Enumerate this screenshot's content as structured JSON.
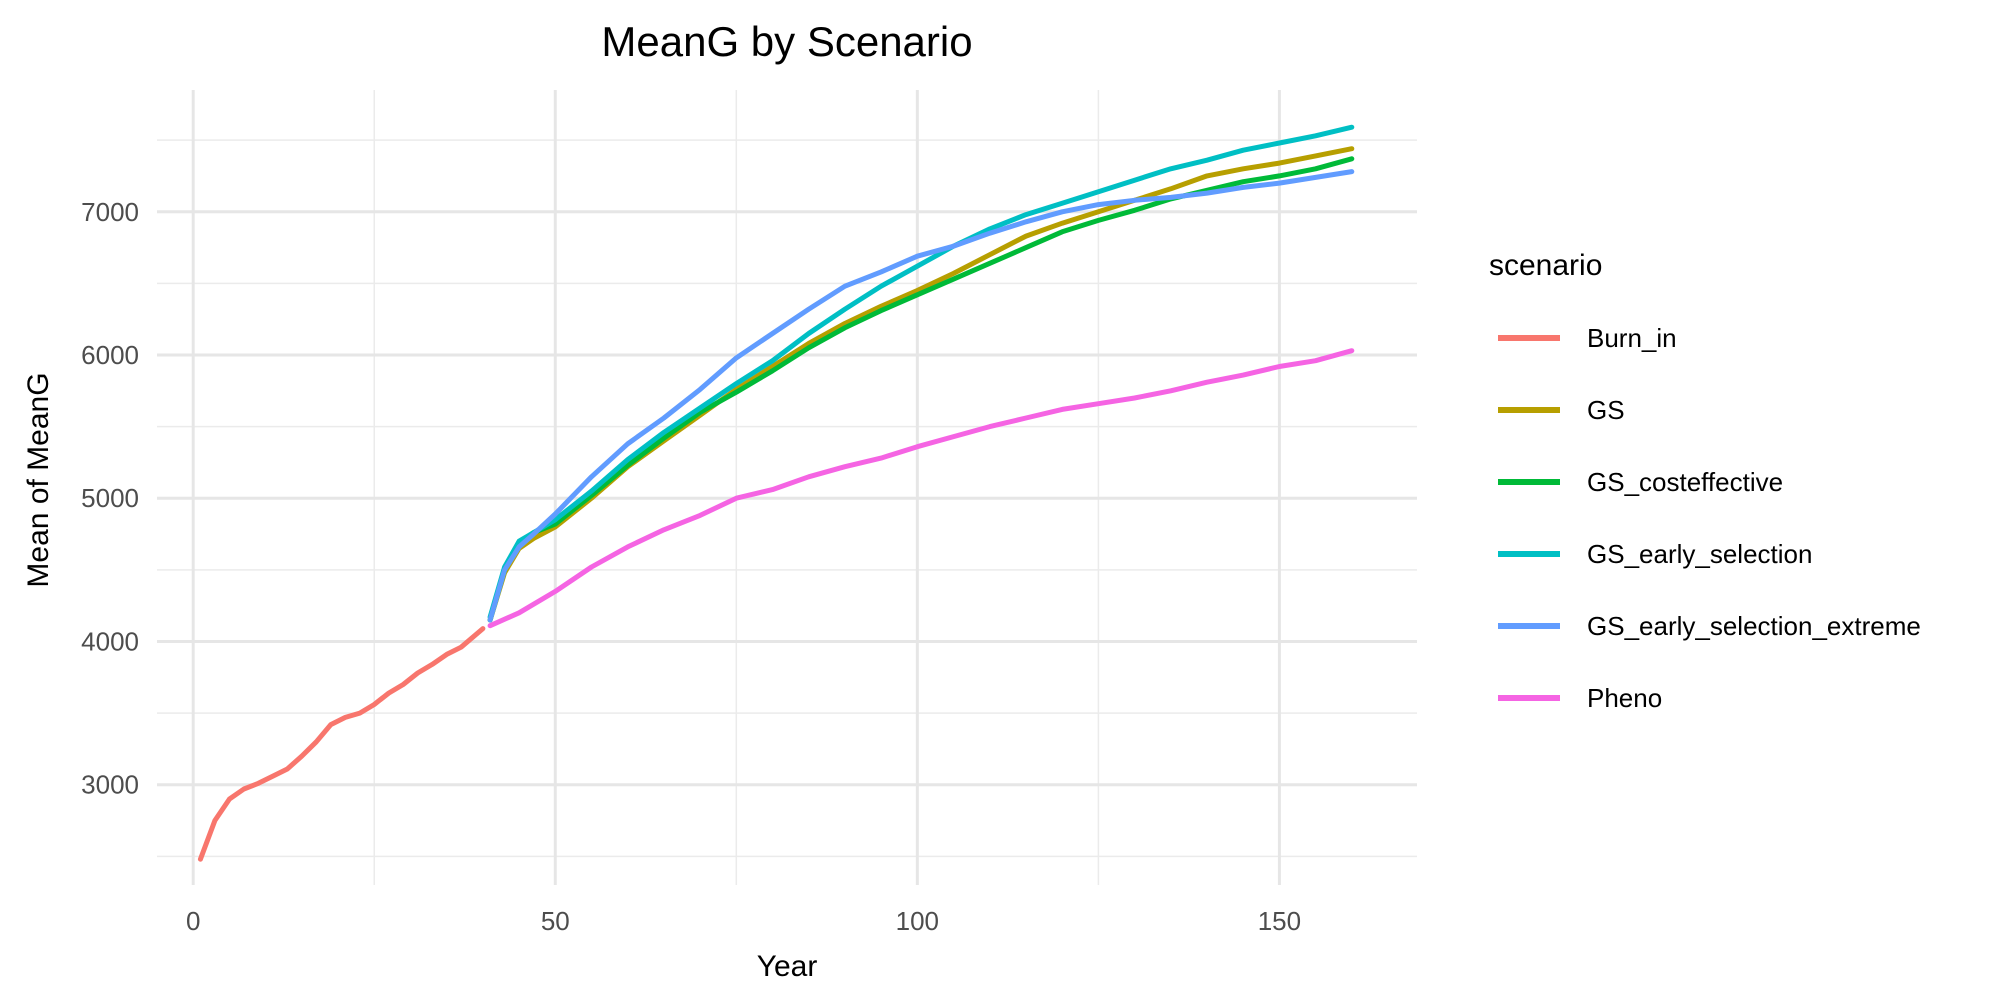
{
  "chart_data": {
    "type": "line",
    "title": "MeanG by Scenario",
    "xlabel": "Year",
    "ylabel": "Mean of MeanG",
    "xlim": [
      -5,
      169
    ],
    "ylim": [
      2300,
      7850
    ],
    "x_ticks": [
      0,
      50,
      100,
      150
    ],
    "x_tick_labels": [
      "0",
      "50",
      "100",
      "150"
    ],
    "y_ticks": [
      3000,
      4000,
      5000,
      6000,
      7000
    ],
    "y_tick_labels": [
      "3000",
      "4000",
      "5000",
      "6000",
      "7000"
    ],
    "grid": true,
    "legend": {
      "title": "scenario",
      "position": "right"
    },
    "series": [
      {
        "name": "Burn_in",
        "color": "#F8766D",
        "x": [
          1,
          3,
          5,
          7,
          9,
          11,
          13,
          15,
          17,
          19,
          21,
          23,
          25,
          27,
          29,
          31,
          33,
          35,
          37,
          40
        ],
        "y": [
          2480,
          2750,
          2900,
          2970,
          3010,
          3060,
          3110,
          3200,
          3300,
          3420,
          3470,
          3500,
          3560,
          3640,
          3700,
          3780,
          3840,
          3910,
          3960,
          4090
        ]
      },
      {
        "name": "GS",
        "color": "#B79F00",
        "x": [
          41,
          43,
          45,
          47,
          50,
          55,
          60,
          65,
          70,
          75,
          80,
          85,
          90,
          95,
          100,
          105,
          110,
          115,
          120,
          125,
          130,
          135,
          140,
          145,
          150,
          155,
          160
        ],
        "y": [
          4150,
          4480,
          4650,
          4720,
          4800,
          5000,
          5220,
          5400,
          5580,
          5760,
          5920,
          6080,
          6220,
          6340,
          6450,
          6570,
          6700,
          6830,
          6920,
          7000,
          7080,
          7160,
          7250,
          7300,
          7340,
          7390,
          7440
        ]
      },
      {
        "name": "GS_costeffective",
        "color": "#00BA38",
        "x": [
          41,
          43,
          45,
          47,
          50,
          55,
          60,
          65,
          70,
          75,
          80,
          85,
          90,
          95,
          100,
          105,
          110,
          115,
          120,
          125,
          130,
          135,
          140,
          145,
          150,
          155,
          160
        ],
        "y": [
          4150,
          4500,
          4690,
          4760,
          4820,
          5020,
          5230,
          5420,
          5600,
          5740,
          5890,
          6050,
          6190,
          6310,
          6420,
          6530,
          6640,
          6750,
          6860,
          6940,
          7010,
          7090,
          7150,
          7210,
          7250,
          7300,
          7370
        ]
      },
      {
        "name": "GS_early_selection",
        "color": "#00BFC4",
        "x": [
          41,
          43,
          45,
          47,
          50,
          55,
          60,
          65,
          70,
          75,
          80,
          85,
          90,
          95,
          100,
          105,
          110,
          115,
          120,
          125,
          130,
          135,
          140,
          145,
          150,
          155,
          160
        ],
        "y": [
          4170,
          4520,
          4700,
          4760,
          4850,
          5050,
          5270,
          5460,
          5630,
          5800,
          5960,
          6150,
          6320,
          6480,
          6620,
          6760,
          6880,
          6980,
          7060,
          7140,
          7220,
          7300,
          7360,
          7430,
          7480,
          7530,
          7590
        ]
      },
      {
        "name": "GS_early_selection_extreme",
        "color": "#619CFF",
        "x": [
          41,
          43,
          45,
          47,
          50,
          55,
          60,
          65,
          70,
          75,
          80,
          85,
          90,
          95,
          100,
          105,
          110,
          115,
          120,
          125,
          130,
          135,
          140,
          145,
          150,
          155,
          160
        ],
        "y": [
          4150,
          4500,
          4660,
          4750,
          4890,
          5150,
          5380,
          5560,
          5760,
          5980,
          6150,
          6320,
          6480,
          6580,
          6690,
          6760,
          6850,
          6930,
          7000,
          7050,
          7080,
          7100,
          7130,
          7170,
          7200,
          7240,
          7280
        ]
      },
      {
        "name": "Pheno",
        "color": "#F564E3",
        "x": [
          41,
          45,
          50,
          55,
          60,
          65,
          70,
          75,
          80,
          85,
          90,
          95,
          100,
          105,
          110,
          115,
          120,
          125,
          130,
          135,
          140,
          145,
          150,
          155,
          160
        ],
        "y": [
          4110,
          4200,
          4350,
          4520,
          4660,
          4780,
          4880,
          5000,
          5060,
          5150,
          5220,
          5280,
          5360,
          5430,
          5500,
          5560,
          5620,
          5660,
          5700,
          5750,
          5810,
          5860,
          5920,
          5960,
          6030
        ]
      }
    ]
  }
}
